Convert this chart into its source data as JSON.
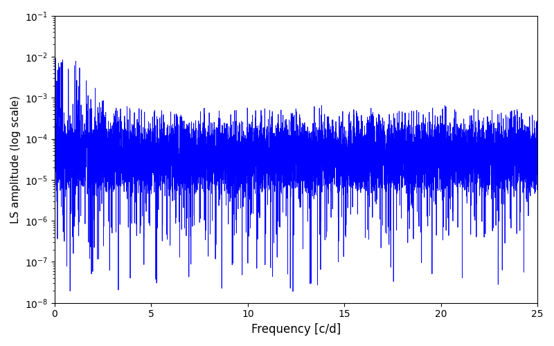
{
  "title": "",
  "xlabel": "Frequency [c/d]",
  "ylabel": "LS amplitude (log scale)",
  "line_color": "#0000ff",
  "line_width": 0.6,
  "xlim": [
    0,
    25
  ],
  "ylim": [
    1e-08,
    0.1
  ],
  "background_color": "#ffffff",
  "n_points": 8000,
  "seed": 12345,
  "freq_max": 25.0,
  "figsize": [
    8.0,
    5.0
  ],
  "dpi": 100
}
